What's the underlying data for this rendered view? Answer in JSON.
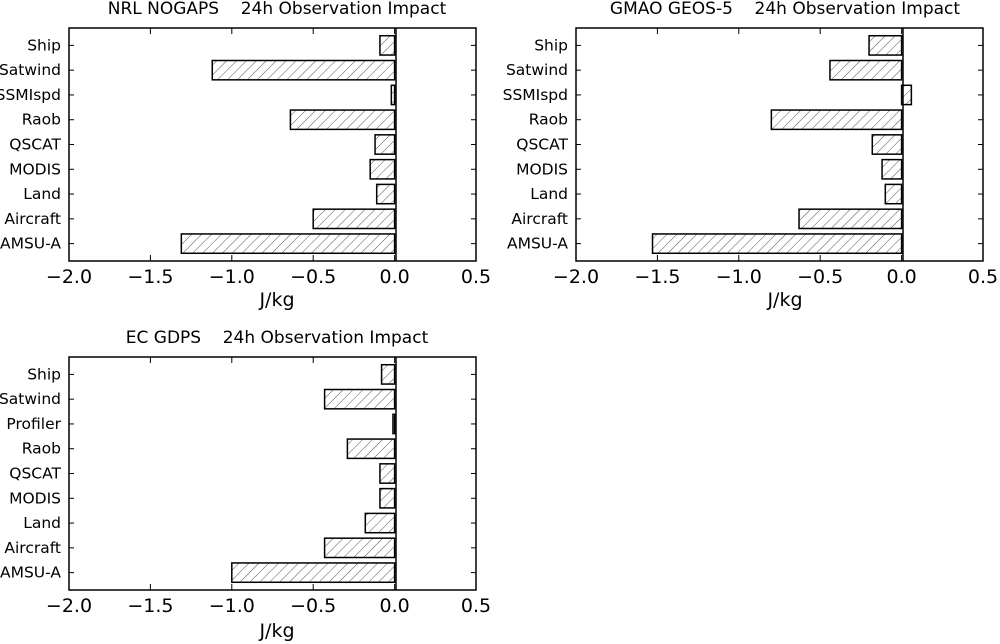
{
  "figure": {
    "background": "#ffffff",
    "bar_fill": "#ffffff",
    "hatch_color": "#555555",
    "edge_color": "#000000"
  },
  "chart_data": [
    {
      "type": "bar",
      "orientation": "horizontal",
      "title": "NRL NOGAPS    24h Observation Impact",
      "xlabel": "J/kg",
      "ylabel": "",
      "xlim": [
        -2.0,
        0.5
      ],
      "xticks": [
        "−2.0",
        "−1.5",
        "−1.0",
        "−0.5",
        "0.0",
        "0.5"
      ],
      "xtick_values": [
        -2.0,
        -1.5,
        -1.0,
        -0.5,
        0.0,
        0.5
      ],
      "categories": [
        "Ship",
        "Satwind",
        "SSMIspd",
        "Raob",
        "QSCAT",
        "MODIS",
        "Land",
        "Aircraft",
        "AMSU-A"
      ],
      "values": [
        -0.09,
        -1.12,
        -0.02,
        -0.64,
        -0.12,
        -0.15,
        -0.11,
        -0.5,
        -1.31
      ],
      "bar_style": "hatched",
      "grid": false,
      "legend": "none"
    },
    {
      "type": "bar",
      "orientation": "horizontal",
      "title": "GMAO GEOS-5    24h Observation Impact",
      "xlabel": "J/kg",
      "ylabel": "",
      "xlim": [
        -2.0,
        0.5
      ],
      "xticks": [
        "−2.0",
        "−1.5",
        "−1.0",
        "−0.5",
        "0.0",
        "0.5"
      ],
      "xtick_values": [
        -2.0,
        -1.5,
        -1.0,
        -0.5,
        0.0,
        0.5
      ],
      "categories": [
        "Ship",
        "Satwind",
        "SSMIspd",
        "Raob",
        "QSCAT",
        "MODIS",
        "Land",
        "Aircraft",
        "AMSU-A"
      ],
      "values": [
        -0.2,
        -0.44,
        0.06,
        -0.8,
        -0.18,
        -0.12,
        -0.1,
        -0.63,
        -1.53
      ],
      "bar_style": "hatched",
      "grid": false,
      "legend": "none"
    },
    {
      "type": "bar",
      "orientation": "horizontal",
      "title": "EC GDPS    24h Observation Impact",
      "xlabel": "J/kg",
      "ylabel": "",
      "xlim": [
        -2.0,
        0.5
      ],
      "xticks": [
        "−2.0",
        "−1.5",
        "−1.0",
        "−0.5",
        "0.0",
        "0.5"
      ],
      "xtick_values": [
        -2.0,
        -1.5,
        -1.0,
        -0.5,
        0.0,
        0.5
      ],
      "categories": [
        "Ship",
        "Satwind",
        "Profiler",
        "Raob",
        "QSCAT",
        "MODIS",
        "Land",
        "Aircraft",
        "AMSU-A"
      ],
      "values": [
        -0.08,
        -0.43,
        -0.01,
        -0.29,
        -0.09,
        -0.09,
        -0.18,
        -0.43,
        -1.0
      ],
      "bar_style": "hatched",
      "grid": false,
      "legend": "none"
    }
  ]
}
